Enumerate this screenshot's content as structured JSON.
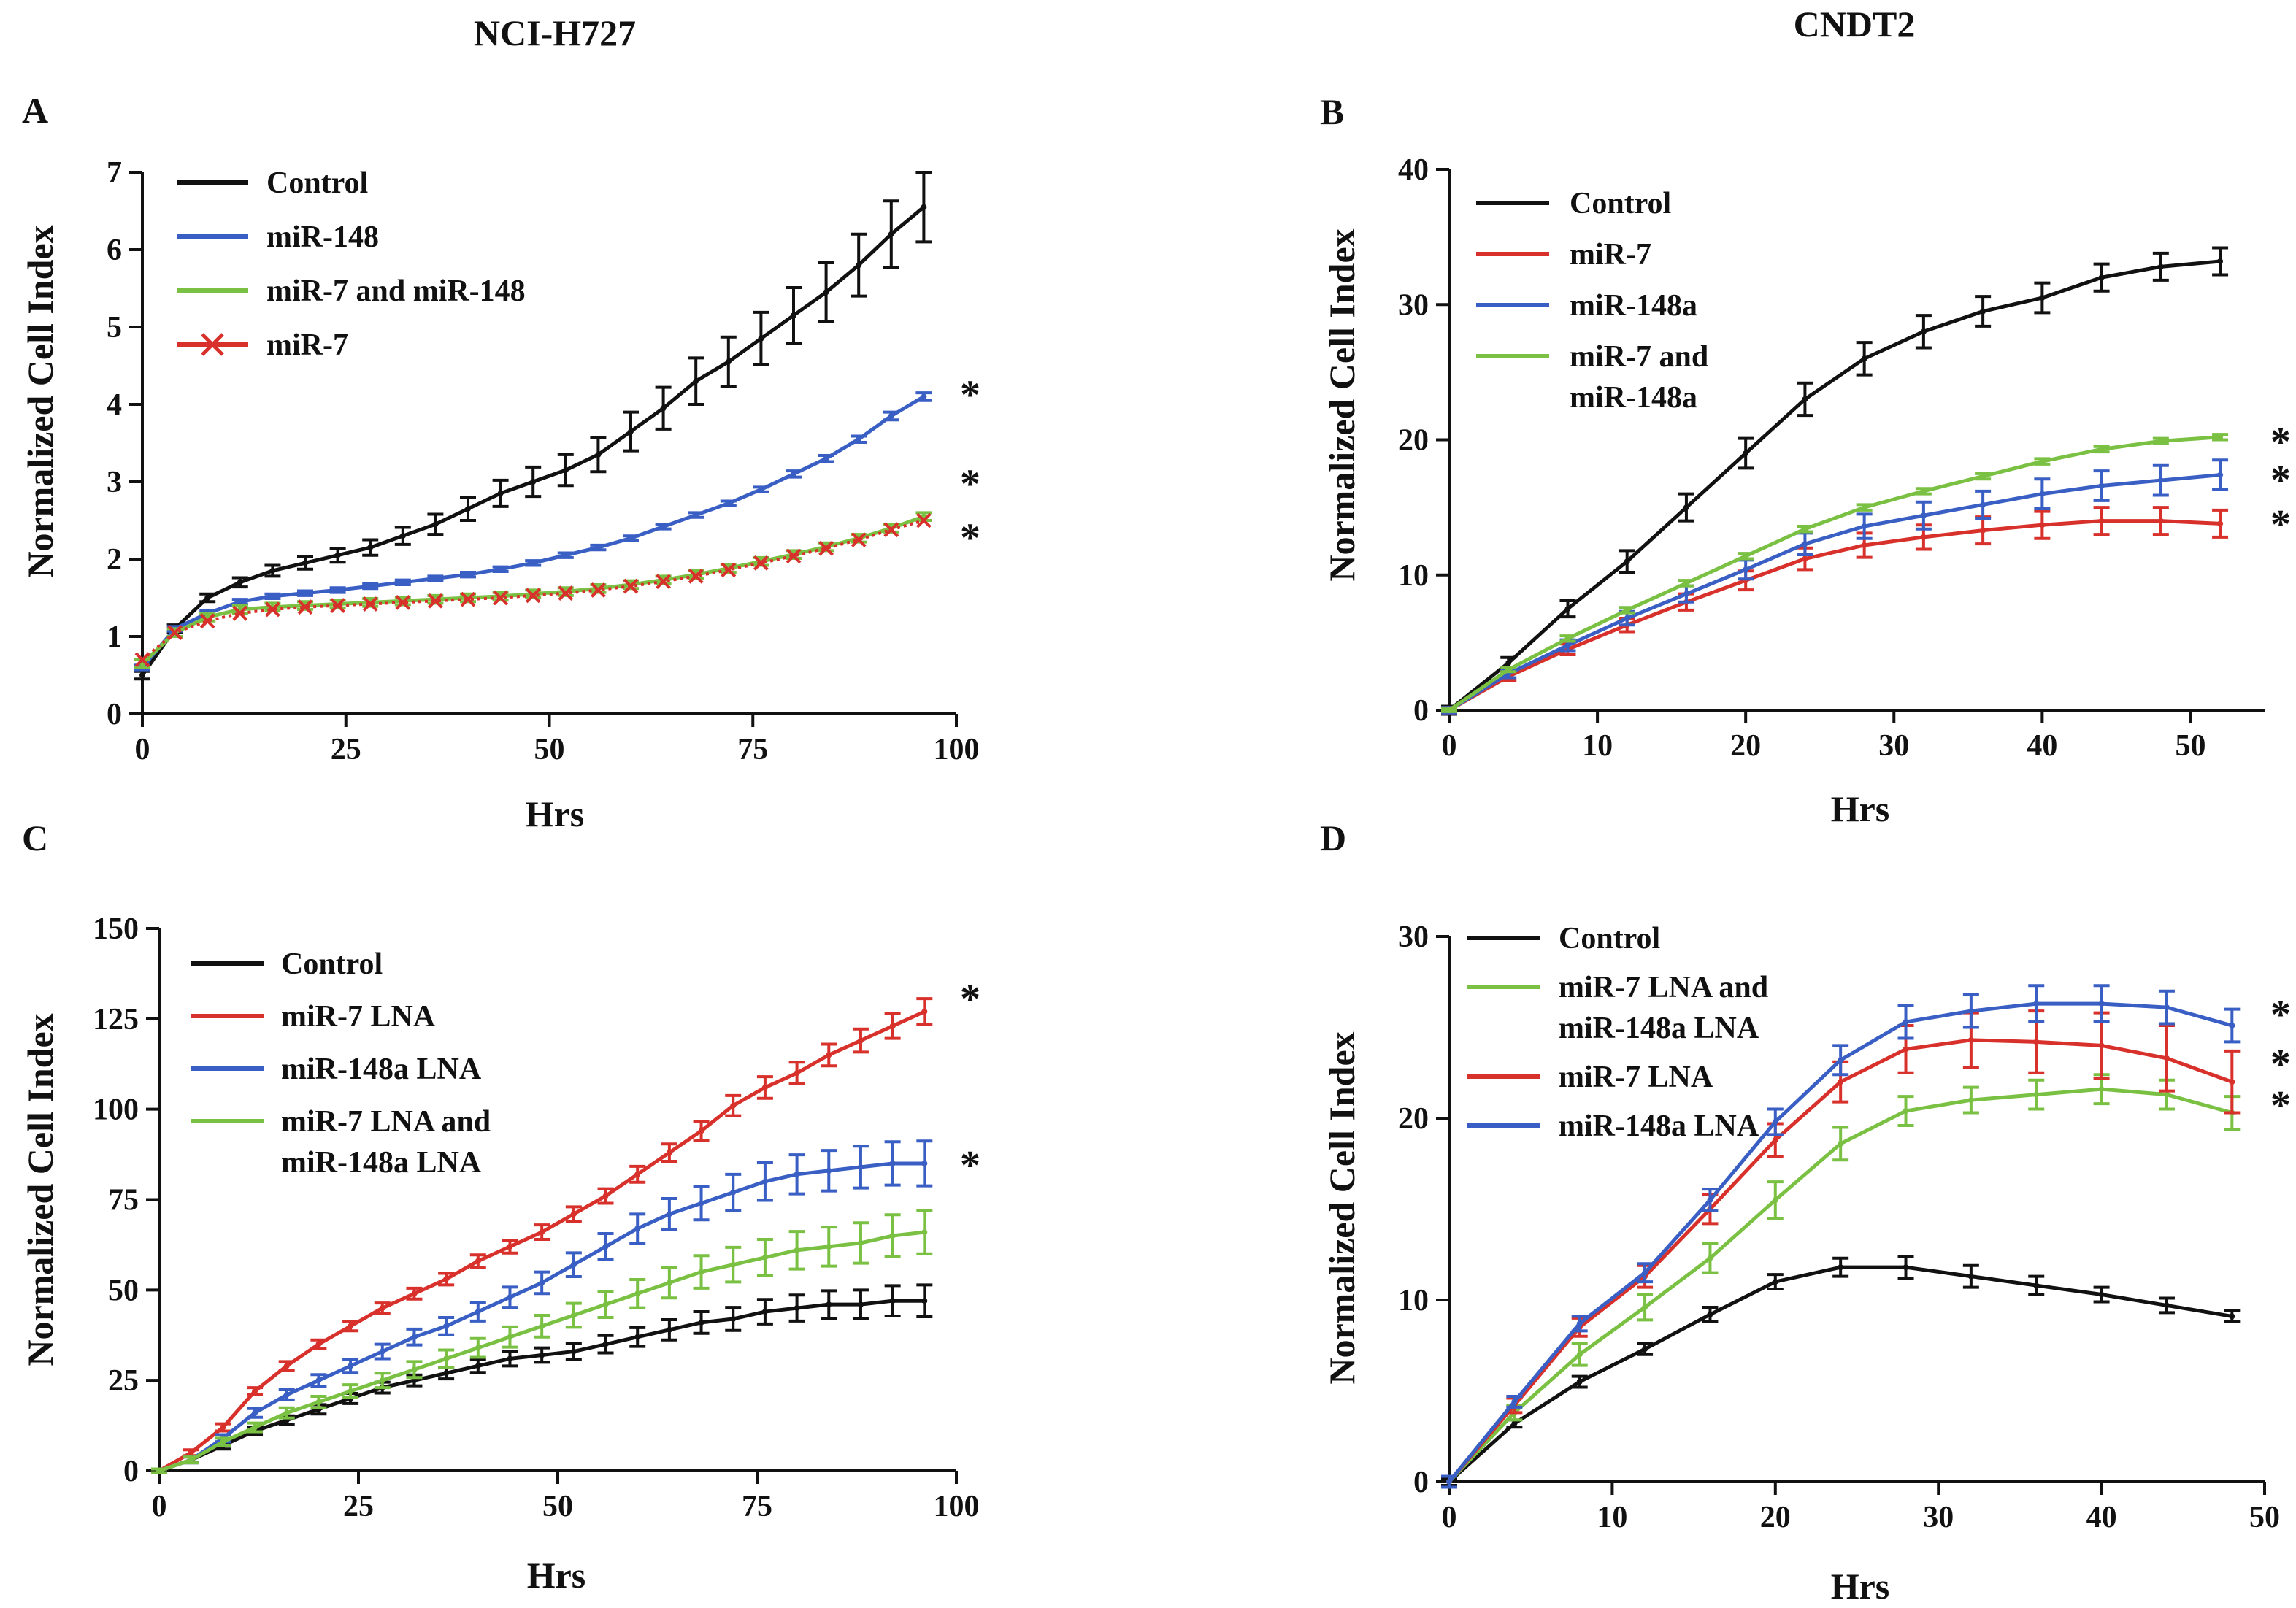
{
  "figure": {
    "column_titles": [
      "NCI-H727",
      "CNDT2"
    ]
  },
  "chart_data": [
    {
      "panel": "A",
      "type": "line",
      "title": "",
      "xlabel": "Hrs",
      "ylabel": "Normalized Cell Index",
      "xlim": [
        0,
        100
      ],
      "ylim": [
        0,
        7
      ],
      "xticks": [
        0,
        25,
        50,
        75,
        100
      ],
      "yticks": [
        0,
        1,
        2,
        3,
        4,
        5,
        6,
        7
      ],
      "x": [
        0,
        4,
        8,
        12,
        16,
        20,
        24,
        28,
        32,
        36,
        40,
        44,
        48,
        52,
        56,
        60,
        64,
        68,
        72,
        76,
        80,
        84,
        88,
        92,
        96
      ],
      "series": [
        {
          "name": "Control",
          "color": "#111111",
          "marker": "errorbar",
          "values": [
            0.5,
            1.1,
            1.5,
            1.7,
            1.85,
            1.95,
            2.05,
            2.15,
            2.3,
            2.45,
            2.65,
            2.85,
            3.0,
            3.15,
            3.35,
            3.65,
            3.95,
            4.3,
            4.55,
            4.85,
            5.15,
            5.45,
            5.8,
            6.2,
            6.55
          ],
          "errors": [
            0.05,
            0.05,
            0.05,
            0.06,
            0.07,
            0.08,
            0.09,
            0.1,
            0.11,
            0.13,
            0.15,
            0.17,
            0.19,
            0.2,
            0.22,
            0.25,
            0.27,
            0.3,
            0.32,
            0.34,
            0.36,
            0.38,
            0.4,
            0.43,
            0.45
          ]
        },
        {
          "name": "miR-148",
          "color": "#3a5fc4",
          "marker": "errorbar",
          "values": [
            0.6,
            1.1,
            1.3,
            1.45,
            1.52,
            1.56,
            1.6,
            1.65,
            1.7,
            1.75,
            1.8,
            1.87,
            1.95,
            2.05,
            2.15,
            2.27,
            2.42,
            2.57,
            2.72,
            2.9,
            3.1,
            3.3,
            3.55,
            3.85,
            4.1
          ],
          "errors": [
            0.03,
            0.03,
            0.03,
            0.03,
            0.03,
            0.03,
            0.03,
            0.03,
            0.03,
            0.03,
            0.03,
            0.03,
            0.03,
            0.03,
            0.03,
            0.03,
            0.03,
            0.03,
            0.03,
            0.03,
            0.04,
            0.04,
            0.04,
            0.05,
            0.05
          ]
        },
        {
          "name": "miR-7 and miR-148",
          "color": "#7ac143",
          "marker": "errorbar",
          "values": [
            0.65,
            1.05,
            1.25,
            1.35,
            1.38,
            1.4,
            1.42,
            1.44,
            1.46,
            1.48,
            1.5,
            1.52,
            1.55,
            1.58,
            1.62,
            1.67,
            1.73,
            1.8,
            1.88,
            1.97,
            2.06,
            2.16,
            2.27,
            2.4,
            2.55
          ],
          "errors": [
            0.05,
            0.05,
            0.05,
            0.05,
            0.05,
            0.05,
            0.05,
            0.05,
            0.05,
            0.05,
            0.05,
            0.05,
            0.05,
            0.05,
            0.05,
            0.05,
            0.05,
            0.05,
            0.05,
            0.05,
            0.05,
            0.05,
            0.05,
            0.05,
            0.05
          ]
        },
        {
          "name": "miR-7",
          "color": "#d8312b",
          "marker": "x",
          "dotted": true,
          "values": [
            0.7,
            1.05,
            1.2,
            1.3,
            1.35,
            1.38,
            1.4,
            1.42,
            1.44,
            1.46,
            1.48,
            1.5,
            1.53,
            1.56,
            1.6,
            1.65,
            1.71,
            1.78,
            1.86,
            1.95,
            2.04,
            2.14,
            2.25,
            2.38,
            2.5
          ],
          "errors": []
        }
      ],
      "significance_marks": [
        "*",
        "*",
        "*"
      ],
      "significance_values": [
        4.1,
        2.95,
        2.25
      ],
      "legend": [
        "Control",
        "miR-148",
        "miR-7 and miR-148",
        "miR-7"
      ],
      "legend_position": "top-left"
    },
    {
      "panel": "B",
      "type": "line",
      "title": "",
      "xlabel": "Hrs",
      "ylabel": "Normalized Cell Index",
      "xlim": [
        0,
        55
      ],
      "ylim": [
        0,
        40
      ],
      "xticks": [
        0,
        10,
        20,
        30,
        40,
        50
      ],
      "yticks": [
        0,
        10,
        20,
        30,
        40
      ],
      "x": [
        0,
        4,
        8,
        12,
        16,
        20,
        24,
        28,
        32,
        36,
        40,
        44,
        48,
        52
      ],
      "series": [
        {
          "name": "Control",
          "color": "#111111",
          "marker": "errorbar",
          "values": [
            0,
            3.5,
            7.5,
            11,
            15,
            19,
            23,
            26,
            28,
            29.5,
            30.5,
            32,
            32.8,
            33.2
          ],
          "errors": [
            0.3,
            0.4,
            0.6,
            0.8,
            1.0,
            1.1,
            1.2,
            1.2,
            1.2,
            1.1,
            1.1,
            1.0,
            1.0,
            1.0
          ]
        },
        {
          "name": "miR-7",
          "color": "#d8312b",
          "marker": "errorbar",
          "values": [
            0,
            2.5,
            4.5,
            6.3,
            8,
            9.6,
            11.2,
            12.2,
            12.8,
            13.3,
            13.7,
            14,
            14,
            13.8
          ],
          "errors": [
            0.2,
            0.3,
            0.4,
            0.5,
            0.6,
            0.7,
            0.8,
            0.9,
            0.9,
            1.0,
            1.0,
            1.0,
            1.0,
            1.0
          ]
        },
        {
          "name": "miR-148a",
          "color": "#3a5fc4",
          "marker": "errorbar",
          "values": [
            0,
            2.7,
            4.8,
            6.8,
            8.6,
            10.4,
            12.3,
            13.6,
            14.4,
            15.2,
            16,
            16.6,
            17,
            17.4
          ],
          "errors": [
            0.2,
            0.3,
            0.4,
            0.5,
            0.6,
            0.7,
            0.8,
            0.9,
            1.0,
            1.0,
            1.1,
            1.1,
            1.1,
            1.1
          ]
        },
        {
          "name": "miR-7 and miR-148a",
          "color": "#7ac143",
          "marker": "errorbar",
          "values": [
            0,
            3,
            5.3,
            7.4,
            9.4,
            11.4,
            13.4,
            15,
            16.2,
            17.3,
            18.4,
            19.3,
            19.9,
            20.2
          ],
          "errors": [
            0.1,
            0.15,
            0.2,
            0.2,
            0.2,
            0.2,
            0.2,
            0.2,
            0.2,
            0.2,
            0.2,
            0.2,
            0.2,
            0.2
          ]
        }
      ],
      "significance_marks": [
        "*",
        "*",
        "*"
      ],
      "significance_values": [
        19.7,
        16.9,
        13.6
      ],
      "legend": [
        "Control",
        "miR-7",
        "miR-148a",
        "miR-7 and miR-148a"
      ],
      "legend_position": "top-left"
    },
    {
      "panel": "C",
      "type": "line",
      "title": "",
      "xlabel": "Hrs",
      "ylabel": "Normalized Cell Index",
      "xlim": [
        0,
        100
      ],
      "ylim": [
        0,
        150
      ],
      "xticks": [
        0,
        25,
        50,
        75,
        100
      ],
      "yticks": [
        0,
        25,
        50,
        75,
        100,
        125,
        150
      ],
      "x": [
        0,
        4,
        8,
        12,
        16,
        20,
        24,
        28,
        32,
        36,
        40,
        44,
        48,
        52,
        56,
        60,
        64,
        68,
        72,
        76,
        80,
        84,
        88,
        92,
        96
      ],
      "series": [
        {
          "name": "Control",
          "color": "#111111",
          "marker": "errorbar",
          "values": [
            0,
            3,
            7,
            11,
            14,
            17,
            20,
            23,
            25,
            27,
            29,
            31,
            32,
            33,
            35,
            37,
            39,
            41,
            42,
            44,
            45,
            46,
            46,
            47,
            47
          ],
          "errors": [
            0.5,
            0.8,
            1,
            1,
            1.2,
            1.3,
            1.4,
            1.5,
            1.5,
            1.6,
            1.8,
            2,
            2,
            2.2,
            2.4,
            2.6,
            2.8,
            3,
            3.2,
            3.4,
            3.6,
            3.8,
            4,
            4.2,
            4.4
          ]
        },
        {
          "name": "miR-7 LNA",
          "color": "#d8312b",
          "marker": "errorbar",
          "values": [
            0,
            5,
            12,
            22,
            29,
            35,
            40,
            45,
            49,
            53,
            58,
            62,
            66,
            71,
            76,
            82,
            88,
            94,
            101,
            106,
            110,
            115,
            119,
            123,
            127
          ],
          "errors": [
            0.5,
            0.8,
            1,
            1,
            1.2,
            1.2,
            1.3,
            1.4,
            1.5,
            1.6,
            1.7,
            1.8,
            2,
            2,
            2,
            2.2,
            2.4,
            2.6,
            2.8,
            3,
            3,
            3,
            3.2,
            3.4,
            3.6
          ]
        },
        {
          "name": "miR-148a LNA",
          "color": "#3a5fc4",
          "marker": "errorbar",
          "values": [
            0,
            3,
            9,
            16,
            21,
            25,
            29,
            33,
            37,
            40,
            44,
            48,
            52,
            57,
            62,
            67,
            71,
            74,
            77,
            80,
            82,
            83,
            84,
            85,
            85
          ],
          "errors": [
            0.5,
            0.8,
            1,
            1.2,
            1.4,
            1.6,
            1.8,
            2,
            2.2,
            2.4,
            2.6,
            2.8,
            3,
            3.3,
            3.6,
            4,
            4.3,
            4.6,
            5,
            5.2,
            5.4,
            5.6,
            5.8,
            6,
            6.2
          ]
        },
        {
          "name": "miR-7 LNA and miR-148a LNA",
          "color": "#7ac143",
          "marker": "errorbar",
          "values": [
            0,
            3,
            8,
            12,
            16,
            19,
            22,
            25,
            28,
            31,
            34,
            37,
            40,
            43,
            46,
            49,
            52,
            55,
            57,
            59,
            61,
            62,
            63,
            65,
            66
          ],
          "errors": [
            0.5,
            0.8,
            1,
            1.2,
            1.4,
            1.6,
            1.8,
            2,
            2.2,
            2.4,
            2.6,
            2.8,
            3,
            3.3,
            3.6,
            3.9,
            4.2,
            4.5,
            4.8,
            5,
            5.2,
            5.4,
            5.6,
            5.8,
            6
          ]
        }
      ],
      "significance_marks": [
        "*",
        "*"
      ],
      "significance_values": [
        130,
        84
      ],
      "legend": [
        "Control",
        "miR-7 LNA",
        "miR-148a LNA",
        "miR-7 LNA and miR-148a LNA"
      ],
      "legend_position": "top-left"
    },
    {
      "panel": "D",
      "type": "line",
      "title": "",
      "xlabel": "Hrs",
      "ylabel": "Normalized Cell Index",
      "xlim": [
        0,
        50
      ],
      "ylim": [
        0,
        30
      ],
      "xticks": [
        0,
        10,
        20,
        30,
        40,
        50
      ],
      "yticks": [
        0,
        10,
        20,
        30
      ],
      "x": [
        0,
        4,
        8,
        12,
        16,
        20,
        24,
        28,
        32,
        36,
        40,
        44,
        48
      ],
      "series": [
        {
          "name": "Control",
          "color": "#111111",
          "marker": "errorbar",
          "values": [
            0,
            3.2,
            5.5,
            7.3,
            9.2,
            11,
            11.8,
            11.8,
            11.3,
            10.8,
            10.3,
            9.7,
            9.1
          ],
          "errors": [
            0.2,
            0.2,
            0.3,
            0.3,
            0.4,
            0.4,
            0.5,
            0.6,
            0.6,
            0.5,
            0.4,
            0.4,
            0.3
          ]
        },
        {
          "name": "miR-7 LNA and miR-148a LNA",
          "color": "#7ac143",
          "marker": "errorbar",
          "values": [
            0,
            3.8,
            7,
            9.6,
            12.3,
            15.5,
            18.6,
            20.4,
            21,
            21.3,
            21.6,
            21.3,
            20.3
          ],
          "errors": [
            0.3,
            0.4,
            0.6,
            0.7,
            0.8,
            1.0,
            0.9,
            0.8,
            0.7,
            0.8,
            0.8,
            0.8,
            0.9
          ]
        },
        {
          "name": "miR-7 LNA",
          "color": "#d8312b",
          "marker": "errorbar",
          "values": [
            0,
            4.2,
            8.5,
            11.3,
            15,
            18.8,
            22,
            23.8,
            24.3,
            24.2,
            24,
            23.3,
            22
          ],
          "errors": [
            0.3,
            0.4,
            0.5,
            0.6,
            0.8,
            0.9,
            1.1,
            1.3,
            1.5,
            1.7,
            1.8,
            1.8,
            1.7
          ]
        },
        {
          "name": "miR-148a LNA",
          "color": "#3a5fc4",
          "marker": "errorbar",
          "values": [
            0,
            4.4,
            8.7,
            11.5,
            15.5,
            19.8,
            23.2,
            25.3,
            25.9,
            26.3,
            26.3,
            26.1,
            25.1
          ],
          "errors": [
            0.3,
            0.3,
            0.4,
            0.5,
            0.6,
            0.7,
            0.8,
            0.9,
            0.9,
            1.0,
            1.0,
            0.9,
            0.9
          ]
        }
      ],
      "significance_marks": [
        "*",
        "*",
        "*"
      ],
      "significance_values": [
        25.6,
        22.9,
        20.6
      ],
      "legend": [
        "Control",
        "miR-7 LNA and miR-148a LNA",
        "miR-7 LNA",
        "miR-148a LNA"
      ],
      "legend_position": "top-left"
    }
  ]
}
